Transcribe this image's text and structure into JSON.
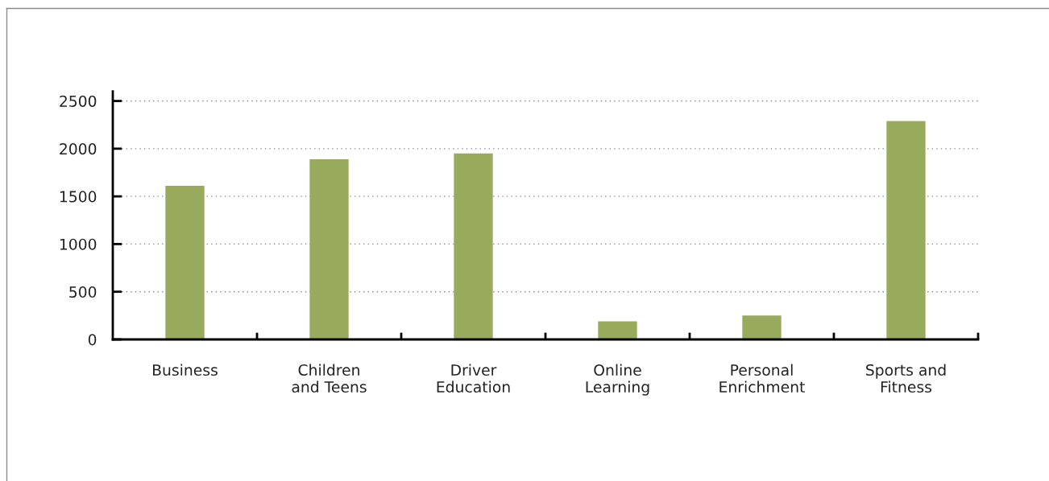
{
  "chart_data": {
    "type": "bar",
    "categories": [
      "Business",
      "Children\nand Teens",
      "Driver\nEducation",
      "Online\nLearning",
      "Personal\nEnrichment",
      "Sports and\nFitness"
    ],
    "values": [
      1610,
      1890,
      1950,
      190,
      250,
      2290
    ],
    "color": "#98ab5d",
    "ylim": [
      0,
      2600
    ],
    "yticks": [
      0,
      500,
      1000,
      1500,
      2000,
      2500
    ],
    "grid": "y",
    "legend": false
  }
}
